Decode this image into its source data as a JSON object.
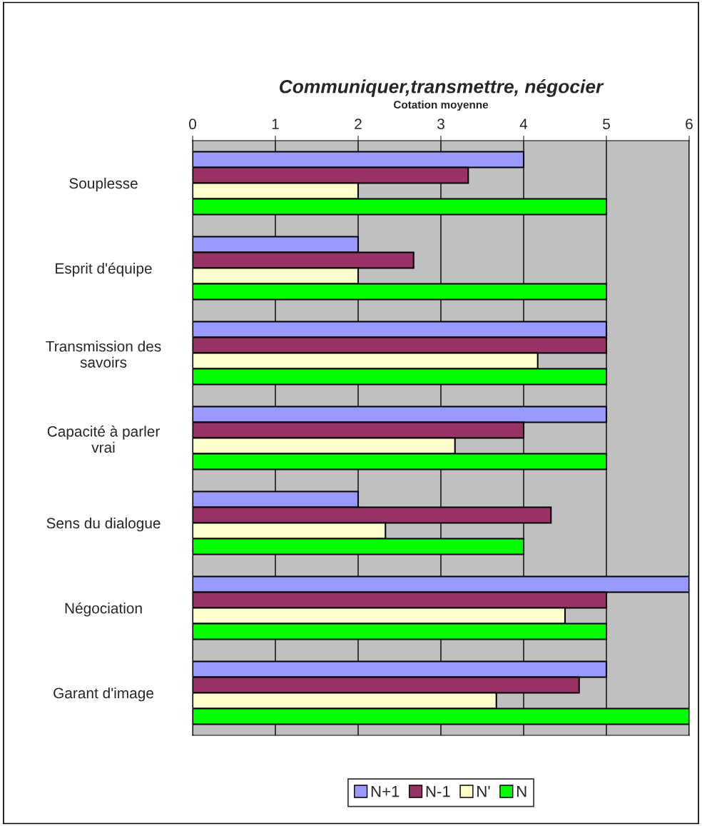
{
  "chart_data": {
    "type": "bar",
    "orientation": "horizontal",
    "title": "Communiquer,transmettre, négocier",
    "xlabel": "Cotation moyenne",
    "categories": [
      "Souplesse",
      "Esprit d'équipe",
      "Transmission des\nsavoirs",
      "Capacité à parler\nvrai",
      "Sens du dialogue",
      "Négociation",
      "Garant d'image"
    ],
    "series": [
      {
        "name": "N+1",
        "color": "#9999ff",
        "values": [
          4,
          2,
          5,
          5,
          2,
          6,
          5
        ]
      },
      {
        "name": "N-1",
        "color": "#993366",
        "values": [
          3.33,
          2.67,
          5,
          4,
          4.33,
          5,
          4.67
        ]
      },
      {
        "name": "N'",
        "color": "#ffffcc",
        "values": [
          2,
          2,
          4.17,
          3.17,
          2.33,
          4.5,
          3.67
        ]
      },
      {
        "name": "N",
        "color": "#00ff00",
        "values": [
          5,
          5,
          5,
          5,
          4,
          5,
          6
        ]
      }
    ],
    "xlim": [
      0,
      6
    ],
    "xticks": [
      0,
      1,
      2,
      3,
      4,
      5,
      6
    ],
    "grid": "x",
    "legend": "bottom"
  }
}
